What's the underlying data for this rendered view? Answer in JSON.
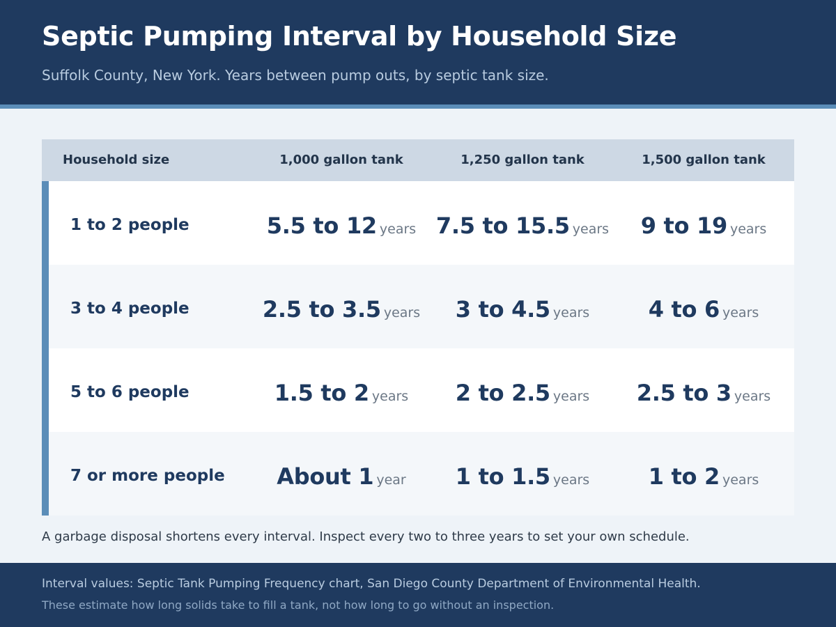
{
  "header": {
    "title": "Septic Pumping Interval by Household Size",
    "subtitle": "Suffolk County, New York. Years between pump outs, by septic tank size."
  },
  "table": {
    "columns": [
      "Household size",
      "1,000 gallon tank",
      "1,250 gallon tank",
      "1,500 gallon tank"
    ],
    "rows": [
      {
        "label": "1 to 2 people",
        "cells": [
          {
            "value": "5.5 to 12",
            "unit": "years"
          },
          {
            "value": "7.5 to 15.5",
            "unit": "years"
          },
          {
            "value": "9 to 19",
            "unit": "years"
          }
        ]
      },
      {
        "label": "3 to 4 people",
        "cells": [
          {
            "value": "2.5 to 3.5",
            "unit": "years"
          },
          {
            "value": "3 to 4.5",
            "unit": "years"
          },
          {
            "value": "4 to 6",
            "unit": "years"
          }
        ]
      },
      {
        "label": "5 to 6 people",
        "cells": [
          {
            "value": "1.5 to 2",
            "unit": "years"
          },
          {
            "value": "2 to 2.5",
            "unit": "years"
          },
          {
            "value": "2.5 to 3",
            "unit": "years"
          }
        ]
      },
      {
        "label": "7 or more people",
        "cells": [
          {
            "value": "About 1",
            "unit": "year"
          },
          {
            "value": "1 to 1.5",
            "unit": "years"
          },
          {
            "value": "1 to 2",
            "unit": "years"
          }
        ]
      }
    ]
  },
  "note": "A garbage disposal shortens every interval. Inspect every two to three years to set your own schedule.",
  "footer": {
    "source": "Interval values: Septic Tank Pumping Frequency chart, San Diego County Department of Environmental Health.",
    "caveat": "These estimate how long solids take to fill a tank, not how long to go without an inspection."
  },
  "colors": {
    "navy": "#1f3a5f",
    "accent": "#5b8db8",
    "header_row": "#cdd8e4",
    "page_bg": "#eef3f8"
  }
}
